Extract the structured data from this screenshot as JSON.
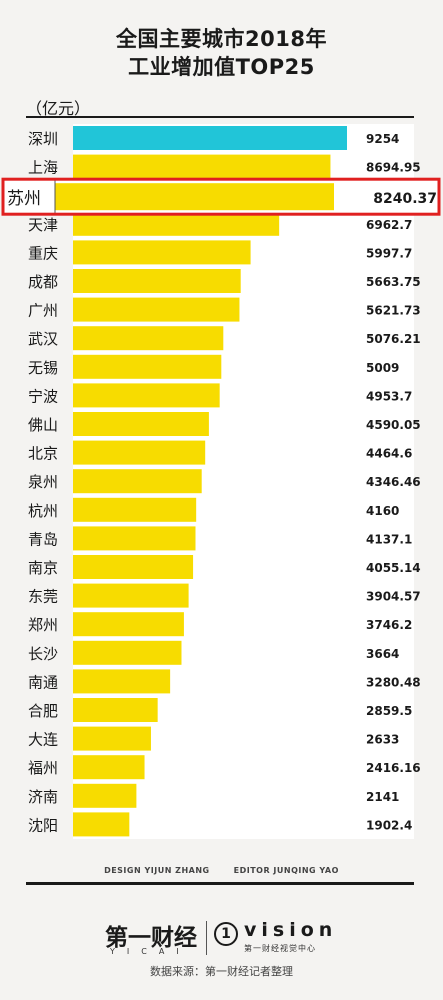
{
  "header": {
    "title_line1": "全国主要城市2018年",
    "title_line2": "工业增加值TOP25",
    "unit": "（亿元）"
  },
  "colors": {
    "highlight_bar": "#21c5d8",
    "bar": "#f7dc00",
    "value_box": "#ffffff",
    "callout_border": "#e02020"
  },
  "chart_data": {
    "type": "bar",
    "orientation": "horizontal",
    "title": "全国主要城市2018年工业增加值TOP25",
    "unit": "（亿元）",
    "categories": [
      "深圳",
      "上海",
      "苏州",
      "天津",
      "重庆",
      "成都",
      "广州",
      "武汉",
      "无锡",
      "宁波",
      "佛山",
      "北京",
      "泉州",
      "杭州",
      "青岛",
      "南京",
      "东莞",
      "郑州",
      "长沙",
      "南通",
      "合肥",
      "大连",
      "福州",
      "济南",
      "沈阳"
    ],
    "values": [
      9254,
      8694.95,
      8240.37,
      6962.7,
      5997.7,
      5663.75,
      5621.73,
      5076.21,
      5009,
      4953.7,
      4590.05,
      4464.6,
      4346.46,
      4160,
      4137.1,
      4055.14,
      3904.57,
      3746.2,
      3664,
      3280.48,
      2859.5,
      2633,
      2416.16,
      2141,
      1902.4
    ],
    "value_labels": [
      "9254",
      "8694.95",
      "8240.37",
      "6962.7",
      "5997.7",
      "5663.75",
      "5621.73",
      "5076.21",
      "5009",
      "4953.7",
      "4590.05",
      "4464.6",
      "4346.46",
      "4160",
      "4137.1",
      "4055.14",
      "3904.57",
      "3746.2",
      "3664",
      "3280.48",
      "2859.5",
      "2633",
      "2416.16",
      "2141",
      "1902.4"
    ],
    "highlighted_category": "深圳",
    "callout_category": "苏州",
    "callout_label": "8240.37"
  },
  "credits": {
    "design": "DESIGN YIJUN ZHANG",
    "editor": "EDITOR JUNQING YAO"
  },
  "footer": {
    "brand_cn": "第一财经",
    "brand_en": "YICAI",
    "vision_mark": "1",
    "vision_name": "vision",
    "vision_sub": "第一财经视觉中心",
    "source": "数据来源：第一财经记者整理"
  }
}
